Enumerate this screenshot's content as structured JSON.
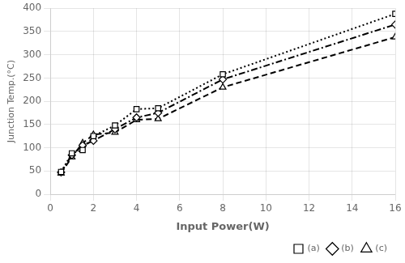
{
  "chart_data": {
    "type": "line",
    "xlabel": "Input Power(W)",
    "ylabel": "Junction Temp.(°C)",
    "x": [
      0.5,
      1.0,
      1.5,
      2.0,
      3.0,
      4.0,
      5.0,
      8.0,
      16.0
    ],
    "series": [
      {
        "name": "(a)",
        "color": "#000000",
        "line_style": "dotted",
        "marker": "square",
        "values": [
          48,
          88,
          95,
          125,
          148,
          183,
          185,
          258,
          388
        ]
      },
      {
        "name": "(b)",
        "color": "#000000",
        "line_style": "dashdot",
        "marker": "diamond",
        "values": [
          47,
          84,
          105,
          115,
          140,
          165,
          175,
          247,
          365
        ]
      },
      {
        "name": "(c)",
        "color": "#000000",
        "line_style": "dashed",
        "marker": "triangle",
        "values": [
          45,
          80,
          110,
          128,
          133,
          160,
          162,
          230,
          338
        ]
      }
    ],
    "xlim": [
      0,
      16
    ],
    "ylim": [
      0,
      400
    ],
    "xticks": [
      0,
      2,
      4,
      6,
      8,
      10,
      12,
      14,
      16
    ],
    "yticks": [
      0,
      50,
      100,
      150,
      200,
      250,
      300,
      350,
      400
    ],
    "grid": true,
    "legend": "lower right"
  }
}
